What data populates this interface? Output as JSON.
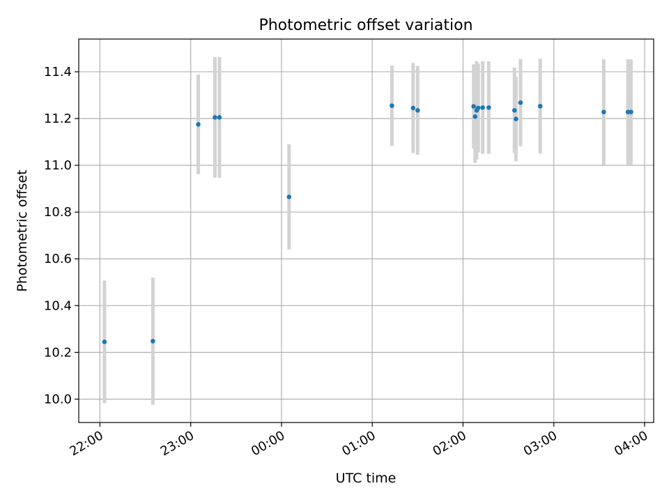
{
  "chart_data": {
    "type": "scatter",
    "title": "Photometric offset variation",
    "xlabel": "UTC time",
    "ylabel": "Photometric offset",
    "x_ticks": [
      "22:00",
      "23:00",
      "00:00",
      "01:00",
      "02:00",
      "03:00",
      "04:00"
    ],
    "y_ticks": [
      "10.0",
      "10.2",
      "10.4",
      "10.6",
      "10.8",
      "11.0",
      "11.2",
      "11.4"
    ],
    "xlim": [
      "21:46",
      "04:06"
    ],
    "ylim": [
      9.9,
      11.54
    ],
    "grid": true,
    "marker_color": "#1f77b4",
    "errorbar_color": "#d3d3d3",
    "points": [
      {
        "time": "22:03",
        "y": 10.245,
        "err": 0.262
      },
      {
        "time": "22:35",
        "y": 10.248,
        "err": 0.272
      },
      {
        "time": "23:05",
        "y": 11.175,
        "err": 0.213
      },
      {
        "time": "23:16",
        "y": 11.205,
        "err": 0.258
      },
      {
        "time": "23:19",
        "y": 11.205,
        "err": 0.258
      },
      {
        "time": "00:05",
        "y": 10.865,
        "err": 0.225
      },
      {
        "time": "01:13",
        "y": 11.255,
        "err": 0.172
      },
      {
        "time": "01:27",
        "y": 11.245,
        "err": 0.193
      },
      {
        "time": "01:30",
        "y": 11.235,
        "err": 0.19
      },
      {
        "time": "02:07",
        "y": 11.252,
        "err": 0.18
      },
      {
        "time": "02:08",
        "y": 11.208,
        "err": 0.198
      },
      {
        "time": "02:09",
        "y": 11.235,
        "err": 0.21
      },
      {
        "time": "02:10",
        "y": 11.245,
        "err": 0.19
      },
      {
        "time": "02:13",
        "y": 11.247,
        "err": 0.198
      },
      {
        "time": "02:17",
        "y": 11.247,
        "err": 0.198
      },
      {
        "time": "02:34",
        "y": 11.235,
        "err": 0.183
      },
      {
        "time": "02:35",
        "y": 11.198,
        "err": 0.18
      },
      {
        "time": "02:38",
        "y": 11.268,
        "err": 0.187
      },
      {
        "time": "02:51",
        "y": 11.253,
        "err": 0.203
      },
      {
        "time": "03:33",
        "y": 11.228,
        "err": 0.225
      },
      {
        "time": "03:49",
        "y": 11.228,
        "err": 0.225
      },
      {
        "time": "03:51",
        "y": 11.228,
        "err": 0.225
      }
    ]
  }
}
